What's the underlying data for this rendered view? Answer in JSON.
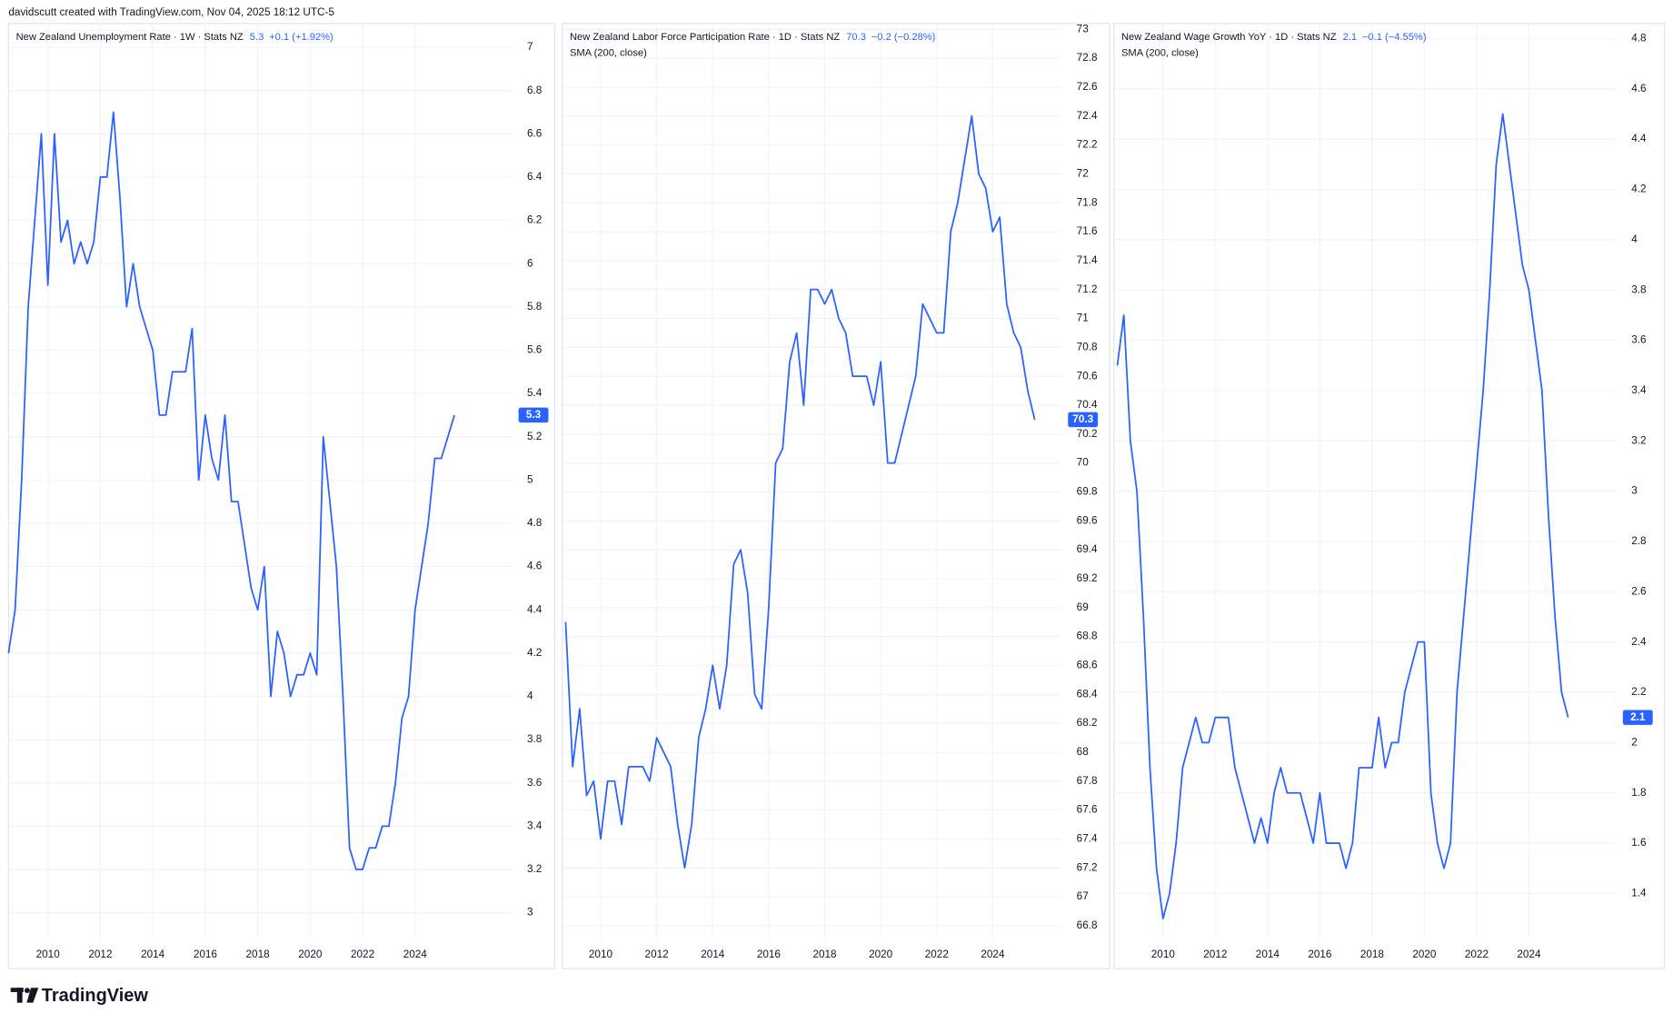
{
  "header": "davidscutt created with TradingView.com, Nov 04, 2025 18:12 UTC-5",
  "footer": {
    "brand": "TradingView"
  },
  "chart_data": [
    {
      "type": "line",
      "title": "New Zealand Unemployment Rate · 1W · Stats NZ",
      "change": "+0.1 (+1.92%)",
      "color": "#2962ff",
      "grid": true,
      "x": [
        2008.5,
        2008.75,
        2009,
        2009.25,
        2009.5,
        2009.75,
        2010,
        2010.25,
        2010.5,
        2010.75,
        2011,
        2011.25,
        2011.5,
        2011.75,
        2012,
        2012.25,
        2012.5,
        2012.75,
        2013,
        2013.25,
        2013.5,
        2013.75,
        2014,
        2014.25,
        2014.5,
        2014.75,
        2015,
        2015.25,
        2015.5,
        2015.75,
        2016,
        2016.25,
        2016.5,
        2016.75,
        2017,
        2017.25,
        2017.5,
        2017.75,
        2018,
        2018.25,
        2018.5,
        2018.75,
        2019,
        2019.25,
        2019.5,
        2019.75,
        2020,
        2020.25,
        2020.5,
        2020.75,
        2021,
        2021.25,
        2021.5,
        2021.75,
        2022,
        2022.25,
        2022.5,
        2022.75,
        2023,
        2023.25,
        2023.5,
        2023.75,
        2024,
        2024.25,
        2024.5,
        2024.75,
        2025,
        2025.25,
        2025.5
      ],
      "values": [
        4.2,
        4.4,
        5,
        5.8,
        6.2,
        6.6,
        5.9,
        6.6,
        6.1,
        6.2,
        6,
        6.1,
        6,
        6.1,
        6.4,
        6.4,
        6.7,
        6.3,
        5.8,
        6,
        5.8,
        5.7,
        5.6,
        5.3,
        5.3,
        5.5,
        5.5,
        5.5,
        5.7,
        5,
        5.3,
        5.1,
        5,
        5.3,
        4.9,
        4.9,
        4.7,
        4.5,
        4.4,
        4.6,
        4,
        4.3,
        4.2,
        4,
        4.1,
        4.1,
        4.2,
        4.1,
        5.2,
        4.9,
        4.6,
        4,
        3.3,
        3.2,
        3.2,
        3.3,
        3.3,
        3.4,
        3.4,
        3.6,
        3.9,
        4,
        4.4,
        4.6,
        4.8,
        5.1,
        5.1,
        5.2,
        5.3
      ],
      "xlim": [
        2008.5,
        2027.7
      ],
      "xticks": [
        2010,
        2012,
        2014,
        2016,
        2018,
        2020,
        2022,
        2024
      ],
      "ylim": [
        2.88,
        7.11
      ],
      "yticks": [
        3,
        3.2,
        3.4,
        3.6,
        3.8,
        4,
        4.2,
        4.4,
        4.6,
        4.8,
        5,
        5.2,
        5.4,
        5.6,
        5.8,
        6,
        6.2,
        6.4,
        6.6,
        6.8,
        7
      ]
    },
    {
      "type": "line",
      "title": "New Zealand Labor Force Participation Rate · 1D · Stats NZ",
      "change": "−0.2 (−0.28%)",
      "study": "SMA (200, close)",
      "color": "#2962ff",
      "grid": true,
      "x": [
        2008.75,
        2009,
        2009.25,
        2009.5,
        2009.75,
        2010,
        2010.25,
        2010.5,
        2010.75,
        2011,
        2011.25,
        2011.5,
        2011.75,
        2012,
        2012.25,
        2012.5,
        2012.75,
        2013,
        2013.25,
        2013.5,
        2013.75,
        2014,
        2014.25,
        2014.5,
        2014.75,
        2015,
        2015.25,
        2015.5,
        2015.75,
        2016,
        2016.25,
        2016.5,
        2016.75,
        2017,
        2017.25,
        2017.5,
        2017.75,
        2018,
        2018.25,
        2018.5,
        2018.75,
        2019,
        2019.25,
        2019.5,
        2019.75,
        2020,
        2020.25,
        2020.5,
        2020.75,
        2021,
        2021.25,
        2021.5,
        2021.75,
        2022,
        2022.25,
        2022.5,
        2022.75,
        2023,
        2023.25,
        2023.5,
        2023.75,
        2024,
        2024.25,
        2024.5,
        2024.75,
        2025,
        2025.25,
        2025.5
      ],
      "values": [
        68.9,
        67.9,
        68.3,
        67.7,
        67.8,
        67.4,
        67.8,
        67.8,
        67.5,
        67.9,
        67.9,
        67.9,
        67.8,
        68.1,
        68,
        67.9,
        67.5,
        67.2,
        67.5,
        68.1,
        68.3,
        68.6,
        68.3,
        68.6,
        69.3,
        69.4,
        69.1,
        68.4,
        68.3,
        69,
        70,
        70.1,
        70.7,
        70.9,
        70.4,
        71.2,
        71.2,
        71.1,
        71.2,
        71,
        70.9,
        70.6,
        70.6,
        70.6,
        70.4,
        70.7,
        70,
        70,
        70.2,
        70.4,
        70.6,
        71.1,
        71,
        70.9,
        70.9,
        71.6,
        71.8,
        72.1,
        72.4,
        72,
        71.9,
        71.6,
        71.7,
        71.1,
        70.9,
        70.8,
        70.5,
        70.3
      ],
      "xlim": [
        2008.63,
        2026.46
      ],
      "xticks": [
        2010,
        2012,
        2014,
        2016,
        2018,
        2020,
        2022,
        2024
      ],
      "ylim": [
        66.71,
        73.04
      ],
      "yticks": [
        66.8,
        67,
        67.2,
        67.4,
        67.6,
        67.8,
        68,
        68.2,
        68.4,
        68.6,
        68.8,
        69,
        69.2,
        69.4,
        69.6,
        69.8,
        70,
        70.2,
        70.4,
        70.6,
        70.8,
        71,
        71.2,
        71.4,
        71.6,
        71.8,
        72,
        72.2,
        72.4,
        72.6,
        72.8,
        73
      ]
    },
    {
      "type": "line",
      "title": "New Zealand Wage Growth YoY · 1D · Stats NZ",
      "change": "−0.1 (−4.55%)",
      "study": "SMA (200, close)",
      "color": "#2962ff",
      "grid": true,
      "x": [
        2008.25,
        2008.5,
        2008.75,
        2009,
        2009.25,
        2009.5,
        2009.75,
        2010,
        2010.25,
        2010.5,
        2010.75,
        2011,
        2011.25,
        2011.5,
        2011.75,
        2012,
        2012.25,
        2012.5,
        2012.75,
        2013,
        2013.25,
        2013.5,
        2013.75,
        2014,
        2014.25,
        2014.5,
        2014.75,
        2015,
        2015.25,
        2015.5,
        2015.75,
        2016,
        2016.25,
        2016.5,
        2016.75,
        2017,
        2017.25,
        2017.5,
        2017.75,
        2018,
        2018.25,
        2018.5,
        2018.75,
        2019,
        2019.25,
        2019.5,
        2019.75,
        2020,
        2020.25,
        2020.5,
        2020.75,
        2021,
        2021.25,
        2021.5,
        2021.75,
        2022,
        2022.25,
        2022.5,
        2022.75,
        2023,
        2023.25,
        2023.5,
        2023.75,
        2024,
        2024.25,
        2024.5,
        2024.75,
        2025,
        2025.25,
        2025.5
      ],
      "values": [
        3.5,
        3.7,
        3.2,
        3,
        2.5,
        1.9,
        1.5,
        1.3,
        1.4,
        1.6,
        1.9,
        2,
        2.1,
        2,
        2,
        2.1,
        2.1,
        2.1,
        1.9,
        1.8,
        1.7,
        1.6,
        1.7,
        1.6,
        1.8,
        1.9,
        1.8,
        1.8,
        1.8,
        1.7,
        1.6,
        1.8,
        1.6,
        1.6,
        1.6,
        1.5,
        1.6,
        1.9,
        1.9,
        1.9,
        2.1,
        1.9,
        2,
        2,
        2.2,
        2.3,
        2.4,
        2.4,
        1.8,
        1.6,
        1.5,
        1.6,
        2.2,
        2.5,
        2.8,
        3.1,
        3.4,
        3.8,
        4.3,
        4.5,
        4.3,
        4.1,
        3.9,
        3.8,
        3.6,
        3.4,
        2.9,
        2.5,
        2.2,
        2.1
      ],
      "xlim": [
        2008.12,
        2027.35
      ],
      "xticks": [
        2010,
        2012,
        2014,
        2016,
        2018,
        2020,
        2022,
        2024
      ],
      "ylim": [
        1.22,
        4.86
      ],
      "yticks": [
        1.4,
        1.6,
        1.8,
        2,
        2.2,
        2.4,
        2.6,
        2.8,
        3,
        3.2,
        3.4,
        3.6,
        3.8,
        4,
        4.2,
        4.4,
        4.6,
        4.8
      ]
    }
  ]
}
